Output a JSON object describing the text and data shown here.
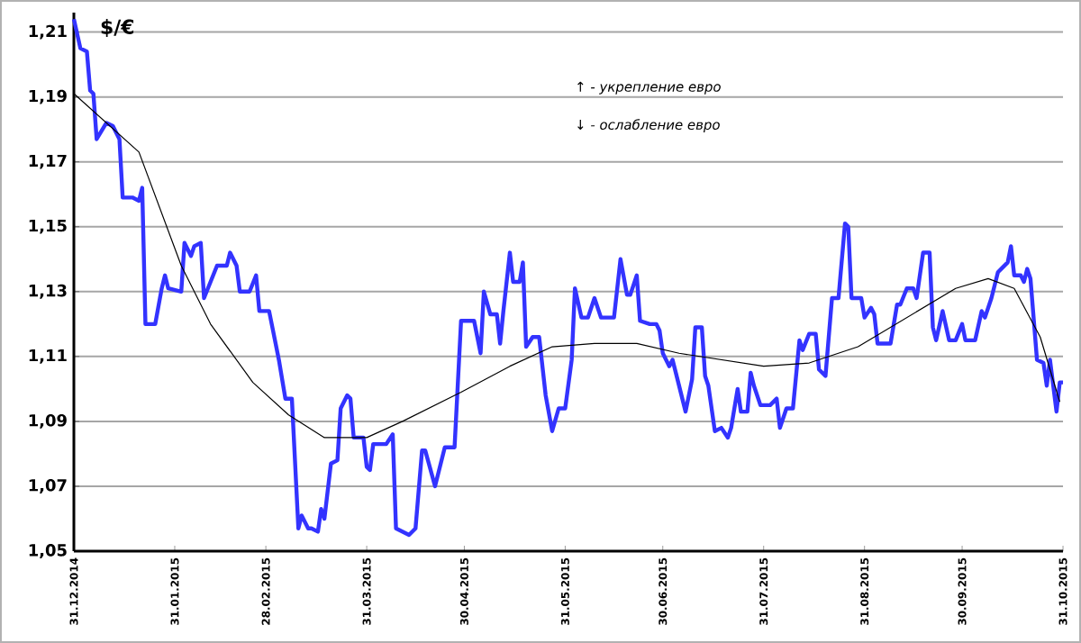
{
  "chart_data": {
    "type": "line",
    "ylabel": "$/€",
    "annotations": [
      "↑ - укрепление евро",
      "↓ - ослабление евро"
    ],
    "xlim": [
      "2014-12-31",
      "2015-10-31"
    ],
    "xticks": [
      {
        "value": "2014-12-31",
        "label": "31.12.2014"
      },
      {
        "value": "2015-01-31",
        "label": "31.01.2015"
      },
      {
        "value": "2015-02-28",
        "label": "28.02.2015"
      },
      {
        "value": "2015-03-31",
        "label": "31.03.2015"
      },
      {
        "value": "2015-04-30",
        "label": "30.04.2015"
      },
      {
        "value": "2015-05-31",
        "label": "31.05.2015"
      },
      {
        "value": "2015-06-30",
        "label": "30.06.2015"
      },
      {
        "value": "2015-07-31",
        "label": "31.07.2015"
      },
      {
        "value": "2015-08-31",
        "label": "31.08.2015"
      },
      {
        "value": "2015-09-30",
        "label": "30.09.2015"
      },
      {
        "value": "2015-10-31",
        "label": "31.10.2015"
      }
    ],
    "ylim": [
      1.05,
      1.216
    ],
    "yticks": [
      {
        "value": 1.05,
        "label": "1,05"
      },
      {
        "value": 1.07,
        "label": "1,07"
      },
      {
        "value": 1.09,
        "label": "1,09"
      },
      {
        "value": 1.11,
        "label": "1,11"
      },
      {
        "value": 1.13,
        "label": "1,13"
      },
      {
        "value": 1.15,
        "label": "1,15"
      },
      {
        "value": 1.17,
        "label": "1,17"
      },
      {
        "value": 1.19,
        "label": "1,19"
      },
      {
        "value": 1.21,
        "label": "1,21"
      }
    ],
    "grid": "y",
    "marker": "none",
    "series": [
      {
        "color": "#3333ff",
        "x": [
          "2014-12-31",
          "2015-01-02",
          "2015-01-04",
          "2015-01-05",
          "2015-01-06",
          "2015-01-07",
          "2015-01-10",
          "2015-01-12",
          "2015-01-14",
          "2015-01-15",
          "2015-01-18",
          "2015-01-20",
          "2015-01-21",
          "2015-01-22",
          "2015-01-25",
          "2015-01-27",
          "2015-01-28",
          "2015-01-29",
          "2015-02-02",
          "2015-02-03",
          "2015-02-05",
          "2015-02-06",
          "2015-02-08",
          "2015-02-09",
          "2015-02-11",
          "2015-02-13",
          "2015-02-16",
          "2015-02-17",
          "2015-02-19",
          "2015-02-20",
          "2015-02-23",
          "2015-02-25",
          "2015-02-26",
          "2015-03-01",
          "2015-03-02",
          "2015-03-04",
          "2015-03-06",
          "2015-03-08",
          "2015-03-10",
          "2015-03-11",
          "2015-03-13",
          "2015-03-14",
          "2015-03-16",
          "2015-03-17",
          "2015-03-18",
          "2015-03-20",
          "2015-03-22",
          "2015-03-23",
          "2015-03-25",
          "2015-03-26",
          "2015-03-27",
          "2015-03-30",
          "2015-03-31",
          "2015-04-01",
          "2015-04-02",
          "2015-04-06",
          "2015-04-08",
          "2015-04-09",
          "2015-04-13",
          "2015-04-15",
          "2015-04-17",
          "2015-04-18",
          "2015-04-21",
          "2015-04-24",
          "2015-04-27",
          "2015-04-29",
          "2015-05-03",
          "2015-05-05",
          "2015-05-06",
          "2015-05-08",
          "2015-05-10",
          "2015-05-11",
          "2015-05-12",
          "2015-05-14",
          "2015-05-15",
          "2015-05-17",
          "2015-05-18",
          "2015-05-19",
          "2015-05-21",
          "2015-05-23",
          "2015-05-25",
          "2015-05-27",
          "2015-05-29",
          "2015-05-31",
          "2015-06-02",
          "2015-06-03",
          "2015-06-05",
          "2015-06-07",
          "2015-06-09",
          "2015-06-11",
          "2015-06-15",
          "2015-06-17",
          "2015-06-19",
          "2015-06-20",
          "2015-06-22",
          "2015-06-23",
          "2015-06-26",
          "2015-06-28",
          "2015-06-29",
          "2015-06-30",
          "2015-07-02",
          "2015-07-03",
          "2015-07-04",
          "2015-07-07",
          "2015-07-09",
          "2015-07-10",
          "2015-07-12",
          "2015-07-13",
          "2015-07-14",
          "2015-07-16",
          "2015-07-18",
          "2015-07-20",
          "2015-07-21",
          "2015-07-23",
          "2015-07-24",
          "2015-07-26",
          "2015-07-27",
          "2015-07-28",
          "2015-07-30",
          "2015-08-02",
          "2015-08-04",
          "2015-08-05",
          "2015-08-07",
          "2015-08-09",
          "2015-08-11",
          "2015-08-12",
          "2015-08-14",
          "2015-08-16",
          "2015-08-17",
          "2015-08-19",
          "2015-08-21",
          "2015-08-23",
          "2015-08-25",
          "2015-08-26",
          "2015-08-27",
          "2015-08-30",
          "2015-08-31",
          "2015-09-02",
          "2015-09-03",
          "2015-09-04",
          "2015-09-08",
          "2015-09-10",
          "2015-09-11",
          "2015-09-13",
          "2015-09-15",
          "2015-09-16",
          "2015-09-18",
          "2015-09-20",
          "2015-09-21",
          "2015-09-22",
          "2015-09-24",
          "2015-09-26",
          "2015-09-28",
          "2015-09-30",
          "2015-10-01",
          "2015-10-04",
          "2015-10-06",
          "2015-10-07",
          "2015-10-09",
          "2015-10-11",
          "2015-10-12",
          "2015-10-14",
          "2015-10-15",
          "2015-10-16",
          "2015-10-18",
          "2015-10-19",
          "2015-10-20",
          "2015-10-21",
          "2015-10-23",
          "2015-10-25",
          "2015-10-26",
          "2015-10-27",
          "2015-10-29",
          "2015-10-30",
          "2015-10-31"
        ],
        "values": [
          1.214,
          1.205,
          1.204,
          1.192,
          1.191,
          1.177,
          1.182,
          1.181,
          1.177,
          1.159,
          1.159,
          1.158,
          1.162,
          1.12,
          1.12,
          1.131,
          1.135,
          1.131,
          1.13,
          1.145,
          1.141,
          1.144,
          1.145,
          1.128,
          1.133,
          1.138,
          1.138,
          1.142,
          1.138,
          1.13,
          1.13,
          1.135,
          1.124,
          1.124,
          1.119,
          1.109,
          1.097,
          1.097,
          1.057,
          1.061,
          1.057,
          1.057,
          1.056,
          1.063,
          1.06,
          1.077,
          1.078,
          1.094,
          1.098,
          1.097,
          1.085,
          1.085,
          1.076,
          1.075,
          1.083,
          1.083,
          1.086,
          1.057,
          1.055,
          1.057,
          1.081,
          1.081,
          1.07,
          1.082,
          1.082,
          1.121,
          1.121,
          1.111,
          1.13,
          1.123,
          1.123,
          1.114,
          1.124,
          1.142,
          1.133,
          1.133,
          1.139,
          1.113,
          1.116,
          1.116,
          1.098,
          1.087,
          1.094,
          1.094,
          1.109,
          1.131,
          1.122,
          1.122,
          1.128,
          1.122,
          1.122,
          1.14,
          1.129,
          1.129,
          1.135,
          1.121,
          1.12,
          1.12,
          1.118,
          1.111,
          1.107,
          1.109,
          1.105,
          1.093,
          1.103,
          1.119,
          1.119,
          1.104,
          1.101,
          1.087,
          1.088,
          1.085,
          1.088,
          1.1,
          1.093,
          1.093,
          1.105,
          1.101,
          1.095,
          1.095,
          1.097,
          1.088,
          1.094,
          1.094,
          1.115,
          1.112,
          1.117,
          1.117,
          1.106,
          1.104,
          1.128,
          1.128,
          1.151,
          1.15,
          1.128,
          1.128,
          1.122,
          1.125,
          1.123,
          1.114,
          1.114,
          1.126,
          1.126,
          1.131,
          1.131,
          1.128,
          1.142,
          1.142,
          1.119,
          1.115,
          1.124,
          1.115,
          1.115,
          1.12,
          1.115,
          1.115,
          1.124,
          1.122,
          1.128,
          1.136,
          1.137,
          1.139,
          1.144,
          1.135,
          1.135,
          1.133,
          1.137,
          1.134,
          1.109,
          1.108,
          1.101,
          1.109,
          1.093,
          1.102,
          1.102
        ]
      },
      {
        "type": "line",
        "color": "#000000",
        "x": [
          "2014-12-31",
          "2015-01-20",
          "2015-02-02",
          "2015-02-11",
          "2015-02-24",
          "2015-03-07",
          "2015-03-18",
          "2015-03-23",
          "2015-03-31",
          "2015-04-11",
          "2015-04-29",
          "2015-05-14",
          "2015-05-27",
          "2015-06-09",
          "2015-06-22",
          "2015-07-05",
          "2015-07-18",
          "2015-07-31",
          "2015-08-14",
          "2015-08-29",
          "2015-09-13",
          "2015-09-28",
          "2015-10-08",
          "2015-10-16",
          "2015-10-24",
          "2015-10-30"
        ],
        "values": [
          1.191,
          1.173,
          1.138,
          1.12,
          1.102,
          1.092,
          1.085,
          1.085,
          1.085,
          1.09,
          1.099,
          1.107,
          1.113,
          1.114,
          1.114,
          1.111,
          1.109,
          1.107,
          1.108,
          1.113,
          1.122,
          1.131,
          1.134,
          1.131,
          1.116,
          1.096
        ]
      }
    ]
  }
}
